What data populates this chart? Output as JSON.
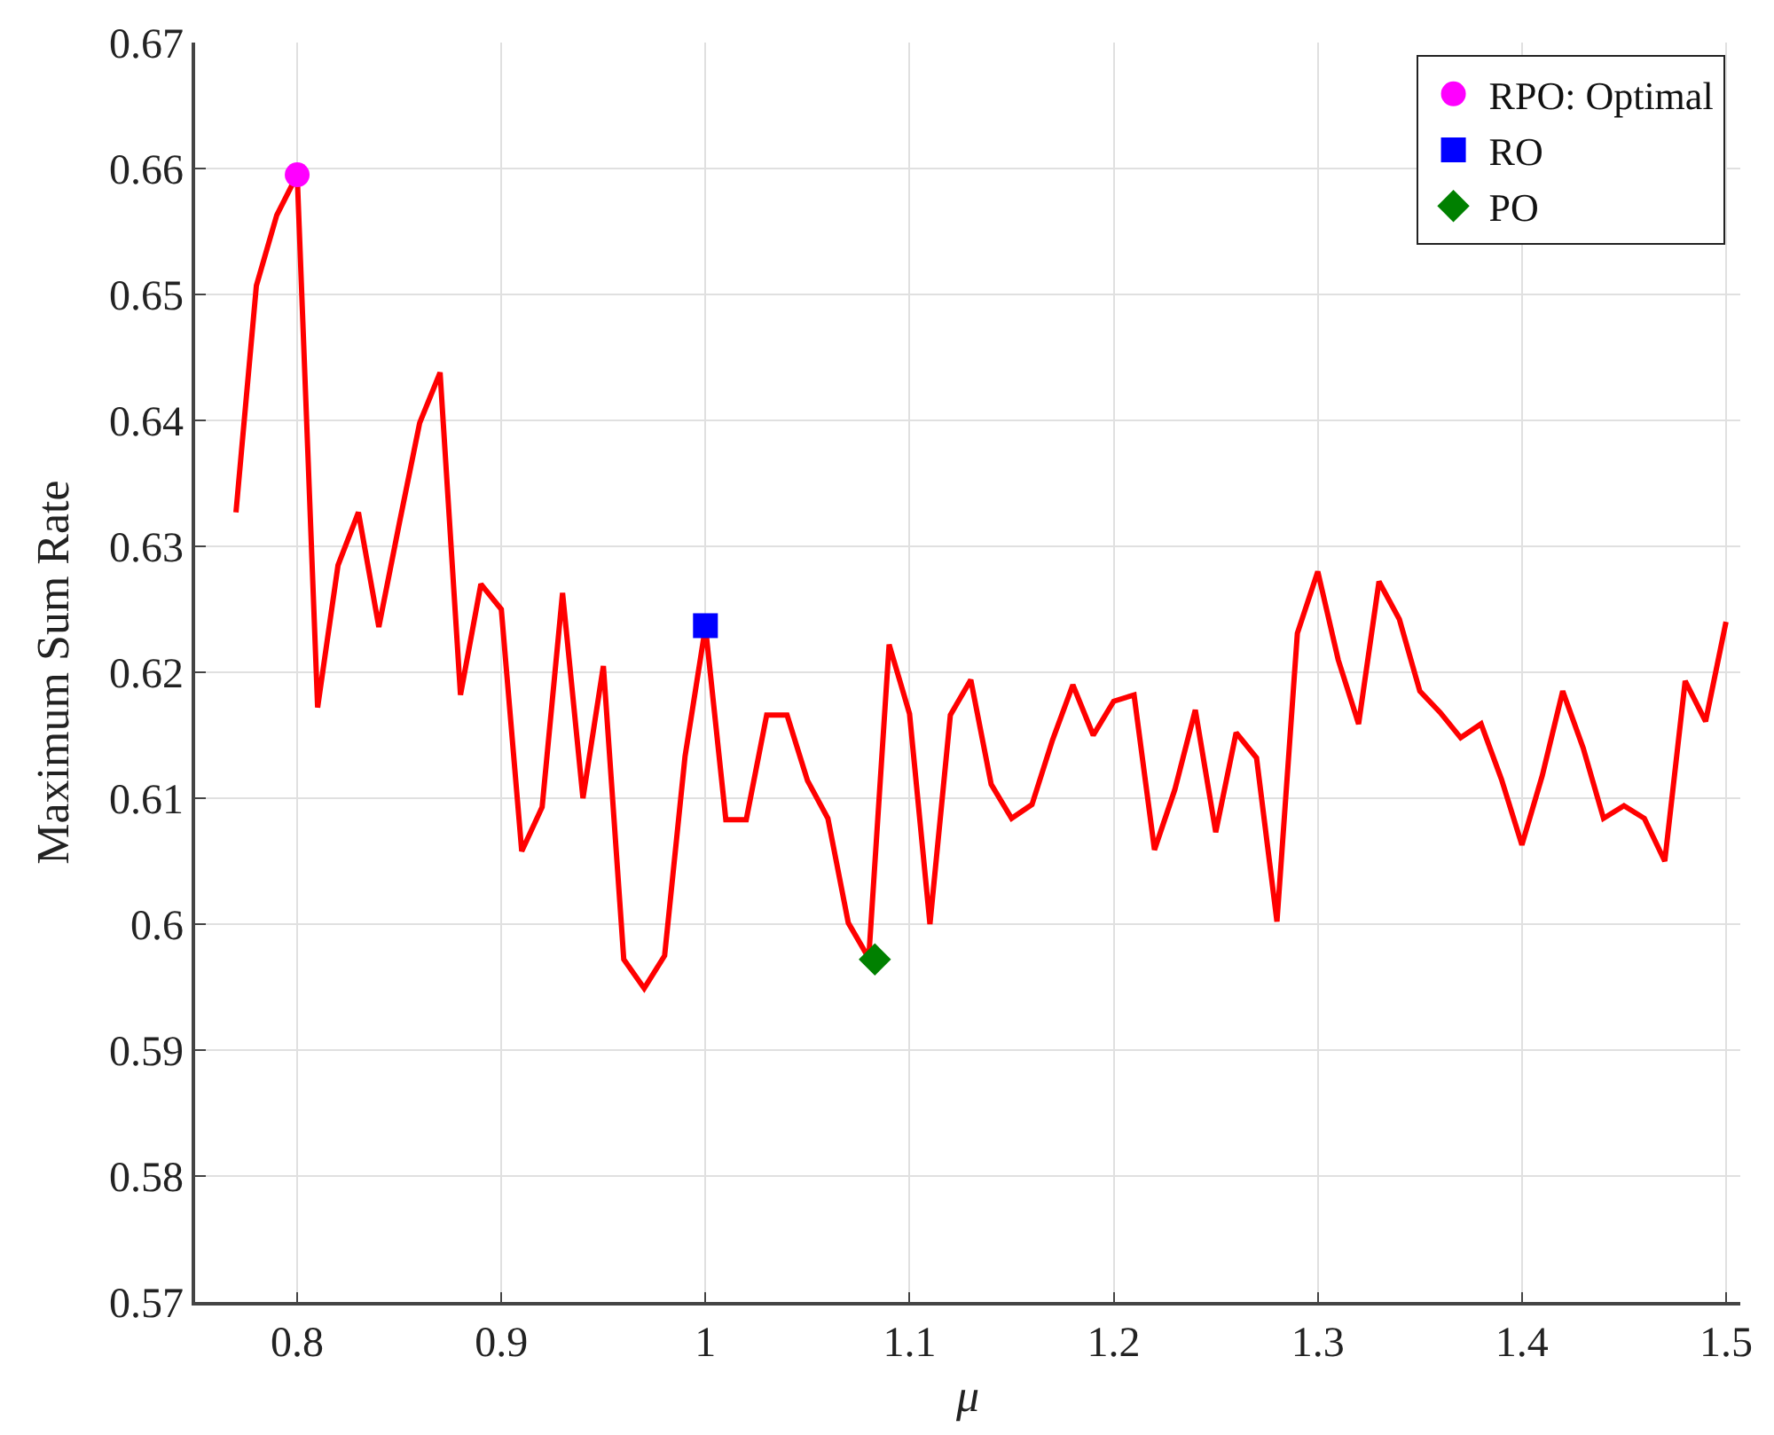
{
  "chart_data": {
    "type": "line",
    "xlabel": "μ",
    "ylabel": "Maximum Sum Rate",
    "xlim": [
      0.75,
      1.507
    ],
    "xticks": [
      {
        "value": 0.8,
        "label": "0.8"
      },
      {
        "value": 0.9,
        "label": "0.9"
      },
      {
        "value": 1,
        "label": "1"
      },
      {
        "value": 1.1,
        "label": "1.1"
      },
      {
        "value": 1.2,
        "label": "1.2"
      },
      {
        "value": 1.3,
        "label": "1.3"
      },
      {
        "value": 1.4,
        "label": "1.4"
      },
      {
        "value": 1.5,
        "label": "1.5"
      }
    ],
    "ylim": [
      0.57,
      0.67
    ],
    "yticks": [
      {
        "value": 0.57,
        "label": "0.57"
      },
      {
        "value": 0.58,
        "label": "0.58"
      },
      {
        "value": 0.59,
        "label": "0.59"
      },
      {
        "value": 0.6,
        "label": "0.6"
      },
      {
        "value": 0.61,
        "label": "0.61"
      },
      {
        "value": 0.62,
        "label": "0.62"
      },
      {
        "value": 0.63,
        "label": "0.63"
      },
      {
        "value": 0.64,
        "label": "0.64"
      },
      {
        "value": 0.65,
        "label": "0.65"
      },
      {
        "value": 0.66,
        "label": "0.66"
      },
      {
        "value": 0.67,
        "label": "0.67"
      }
    ],
    "grid": true,
    "legend": "top right",
    "series": [
      {
        "color": "#ff0000",
        "marker": "none",
        "x": [
          0.77,
          0.78,
          0.79,
          0.8,
          0.81,
          0.82,
          0.83,
          0.84,
          0.85,
          0.86,
          0.87,
          0.88,
          0.89,
          0.9,
          0.91,
          0.92,
          0.93,
          0.94,
          0.95,
          0.96,
          0.97,
          0.98,
          0.99,
          1.0,
          1.01,
          1.02,
          1.03,
          1.04,
          1.05,
          1.06,
          1.07,
          1.08,
          1.09,
          1.1,
          1.11,
          1.12,
          1.13,
          1.14,
          1.15,
          1.16,
          1.17,
          1.18,
          1.19,
          1.2,
          1.21,
          1.22,
          1.23,
          1.24,
          1.25,
          1.26,
          1.27,
          1.28,
          1.29,
          1.3,
          1.31,
          1.32,
          1.33,
          1.34,
          1.35,
          1.36,
          1.37,
          1.38,
          1.39,
          1.4,
          1.41,
          1.42,
          1.43,
          1.44,
          1.45,
          1.46,
          1.47,
          1.48,
          1.49,
          1.5
        ],
        "values": [
          0.6327,
          0.6507,
          0.6563,
          0.6595,
          0.6172,
          0.6285,
          0.6327,
          0.6236,
          0.6318,
          0.6398,
          0.6438,
          0.6182,
          0.627,
          0.625,
          0.6058,
          0.6093,
          0.6263,
          0.61,
          0.6205,
          0.5972,
          0.5949,
          0.5975,
          0.6133,
          0.6236,
          0.6083,
          0.6083,
          0.6166,
          0.6166,
          0.6114,
          0.6084,
          0.6001,
          0.5973,
          0.6222,
          0.6167,
          0.6,
          0.6166,
          0.6194,
          0.6111,
          0.6084,
          0.6095,
          0.6146,
          0.619,
          0.615,
          0.6177,
          0.6182,
          0.6059,
          0.6107,
          0.617,
          0.6073,
          0.6152,
          0.6132,
          0.6002,
          0.6231,
          0.628,
          0.621,
          0.6159,
          0.6272,
          0.6242,
          0.6185,
          0.6168,
          0.6148,
          0.6159,
          0.6115,
          0.6063,
          0.6118,
          0.6185,
          0.614,
          0.6084,
          0.6094,
          0.6084,
          0.605,
          0.6193,
          0.6161,
          0.624
        ]
      },
      {
        "type": "scatter",
        "name": "RPO: Optimal",
        "color": "#ff00ff",
        "marker": "circle",
        "x": [
          0.8
        ],
        "values": [
          0.6595
        ]
      },
      {
        "type": "scatter",
        "name": "RO",
        "color": "#0000ff",
        "marker": "square",
        "x": [
          1.0
        ],
        "values": [
          0.6237
        ]
      },
      {
        "type": "scatter",
        "name": "PO",
        "color": "#008000",
        "marker": "diamond",
        "x": [
          1.083
        ],
        "values": [
          0.5972
        ]
      }
    ]
  }
}
